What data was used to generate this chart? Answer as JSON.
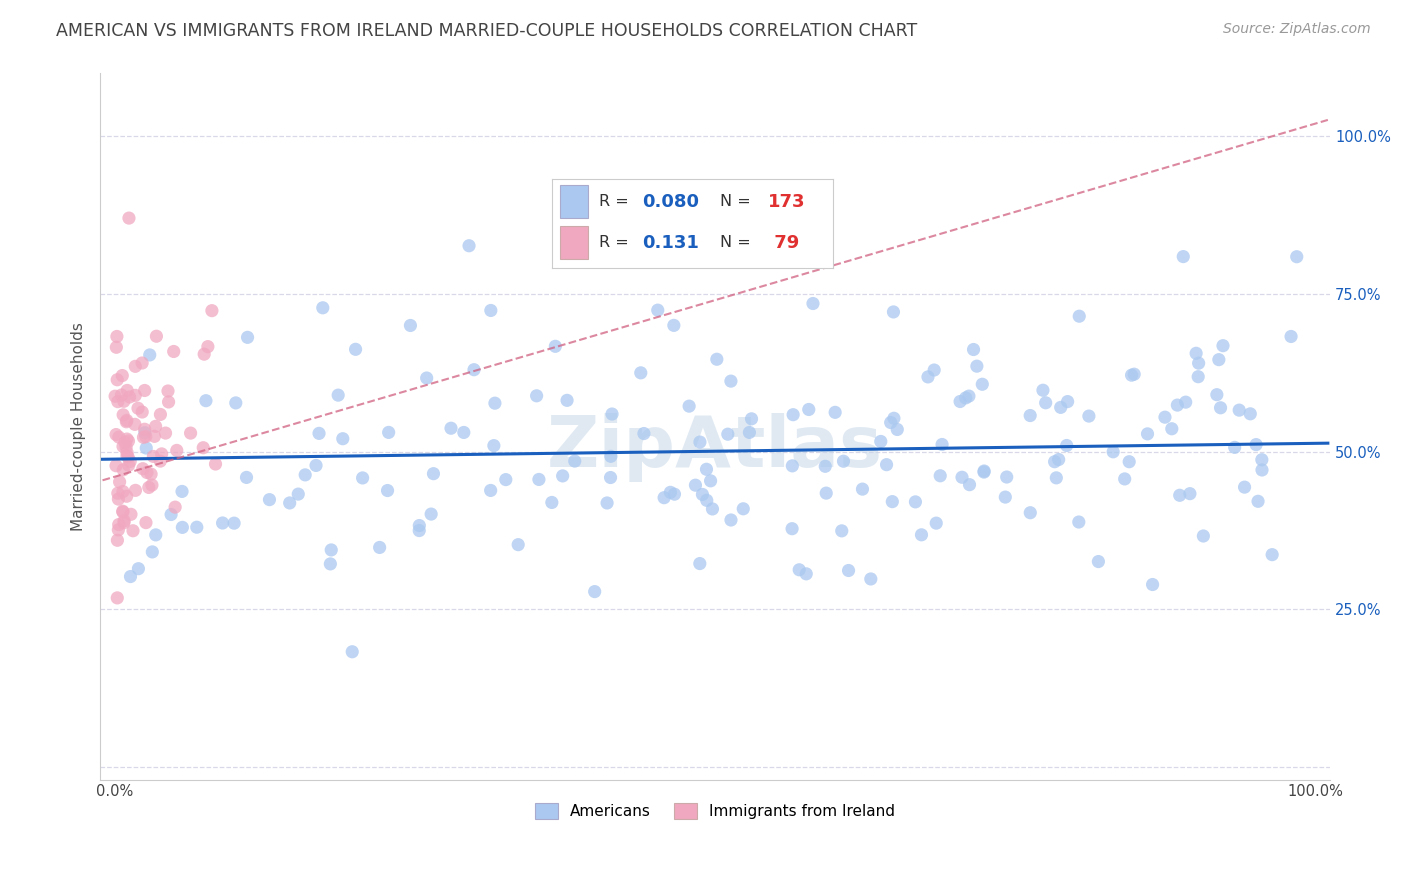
{
  "title": "AMERICAN VS IMMIGRANTS FROM IRELAND MARRIED-COUPLE HOUSEHOLDS CORRELATION CHART",
  "source": "Source: ZipAtlas.com",
  "ylabel": "Married-couple Households",
  "americans_R": 0.08,
  "americans_N": 173,
  "ireland_R": 0.131,
  "ireland_N": 79,
  "americans_color": "#aac8f0",
  "ireland_color": "#f0a8c0",
  "americans_line_color": "#1a5fbd",
  "ireland_line_color": "#d06080",
  "watermark": "ZipAtlas",
  "background_color": "#ffffff",
  "grid_color": "#d8d8e8",
  "title_color": "#444444",
  "legend_R_color": "#1a5fbd",
  "legend_N_color": "#e03030",
  "title_fontsize": 12.5,
  "source_fontsize": 10,
  "ylabel_fontsize": 11,
  "tick_fontsize": 10.5,
  "legend_fontsize": 13,
  "am_line_intercept": 0.488,
  "am_line_slope": 0.025,
  "ir_line_intercept": 0.46,
  "ir_line_slope": 0.56
}
